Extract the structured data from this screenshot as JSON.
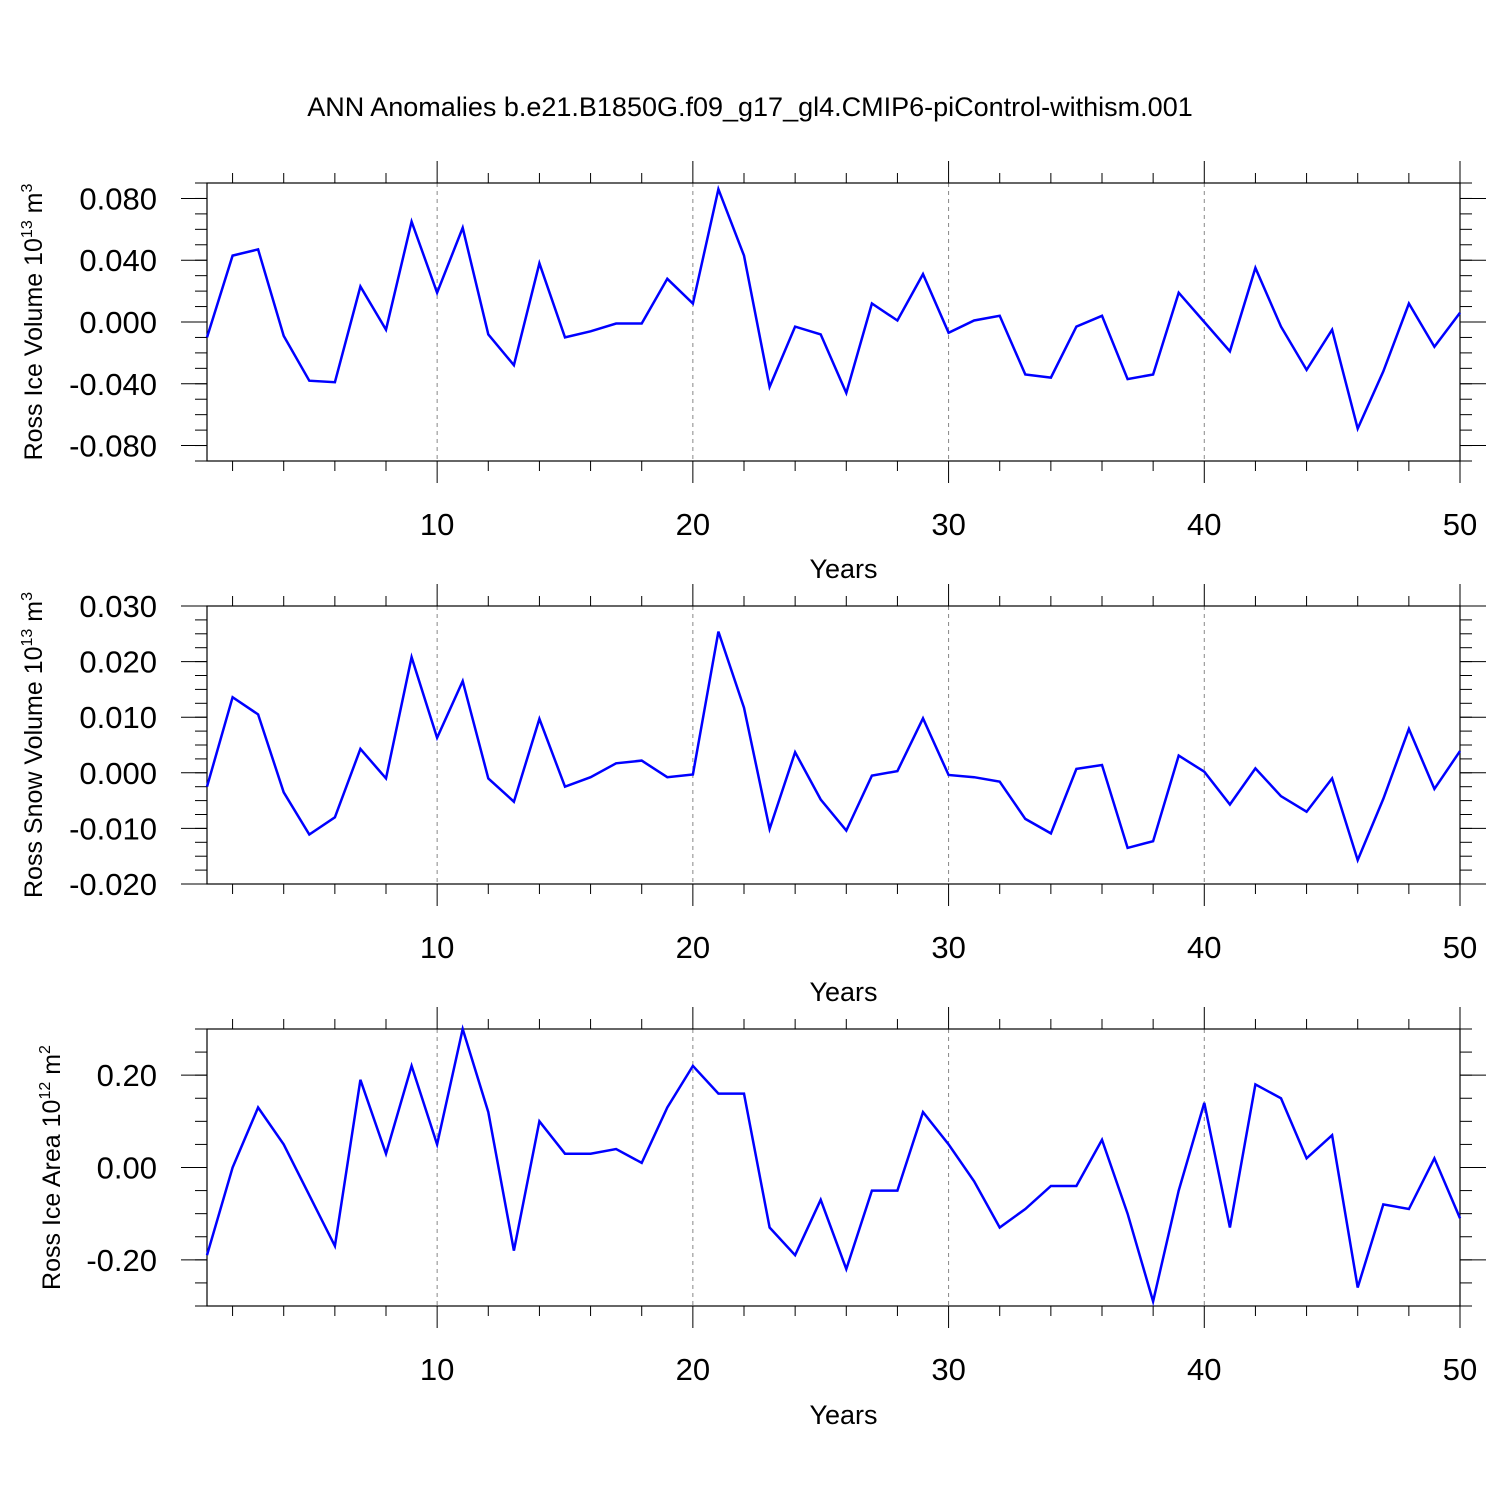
{
  "title": "ANN Anomalies b.e21.B1850G.f09_g17_gl4.CMIP6-piControl-withism.001",
  "colors": {
    "line": "#0000ff",
    "axis": "#000000",
    "grid": "#888888"
  },
  "chart_data": [
    {
      "type": "line",
      "xlabel": "Years",
      "ylabel": "Ross Ice Volume 10",
      "ylabel_exp": "13",
      "ylabel_unit": " m",
      "ylabel_unit_exp": "3",
      "xlim": [
        1,
        50
      ],
      "ylim": [
        -0.09,
        0.09
      ],
      "xticks": [
        "10",
        "20",
        "30",
        "40",
        "50"
      ],
      "yticks": [
        "-0.080",
        "-0.040",
        "0.000",
        "0.040",
        "0.080"
      ],
      "grid": "dashed vertical at 10, 20, 30, 40",
      "series": [
        {
          "x": [
            1,
            2,
            3,
            4,
            5,
            6,
            7,
            8,
            9,
            10,
            11,
            12,
            13,
            14,
            15,
            16,
            17,
            18,
            19,
            20,
            21,
            22,
            23,
            24,
            25,
            26,
            27,
            28,
            29,
            30,
            31,
            32,
            33,
            34,
            35,
            36,
            37,
            38,
            39,
            40,
            41,
            42,
            43,
            44,
            45,
            46,
            47,
            48,
            49,
            50
          ],
          "values": [
            -0.01,
            0.043,
            0.047,
            -0.009,
            -0.038,
            -0.039,
            0.023,
            -0.005,
            0.065,
            0.019,
            0.061,
            -0.008,
            -0.028,
            0.038,
            -0.01,
            -0.006,
            -0.001,
            -0.001,
            0.028,
            0.012,
            0.086,
            0.043,
            -0.042,
            -0.003,
            -0.008,
            -0.046,
            0.012,
            0.001,
            0.031,
            -0.007,
            0.001,
            0.004,
            -0.034,
            -0.036,
            -0.003,
            0.004,
            -0.037,
            -0.034,
            0.019,
            0.0,
            -0.019,
            0.035,
            -0.003,
            -0.031,
            -0.005,
            -0.069,
            -0.032,
            0.012,
            -0.016,
            0.006
          ]
        }
      ]
    },
    {
      "type": "line",
      "xlabel": "Years",
      "ylabel": "Ross Snow Volume 10",
      "ylabel_exp": "13",
      "ylabel_unit": " m",
      "ylabel_unit_exp": "3",
      "xlim": [
        1,
        50
      ],
      "ylim": [
        -0.02,
        0.03
      ],
      "xticks": [
        "10",
        "20",
        "30",
        "40",
        "50"
      ],
      "yticks": [
        "-0.020",
        "-0.010",
        "0.000",
        "0.010",
        "0.020",
        "0.030"
      ],
      "grid": "dashed vertical at 10, 20, 30, 40",
      "series": [
        {
          "x": [
            1,
            2,
            3,
            4,
            5,
            6,
            7,
            8,
            9,
            10,
            11,
            12,
            13,
            14,
            15,
            16,
            17,
            18,
            19,
            20,
            21,
            22,
            23,
            24,
            25,
            26,
            27,
            28,
            29,
            30,
            31,
            32,
            33,
            34,
            35,
            36,
            37,
            38,
            39,
            40,
            41,
            42,
            43,
            44,
            45,
            46,
            47,
            48,
            49,
            50
          ],
          "values": [
            -0.0025,
            0.0136,
            0.0105,
            -0.0035,
            -0.0111,
            -0.008,
            0.0043,
            -0.001,
            0.0208,
            0.0063,
            0.0165,
            -0.001,
            -0.0052,
            0.0097,
            -0.0025,
            -0.0008,
            0.0017,
            0.0022,
            -0.0008,
            -0.0003,
            0.0254,
            0.0117,
            -0.0101,
            0.0037,
            -0.0048,
            -0.0104,
            -0.0005,
            0.0003,
            0.0098,
            -0.0004,
            -0.0008,
            -0.0016,
            -0.0083,
            -0.0109,
            0.0007,
            0.0014,
            -0.0135,
            -0.0123,
            0.0031,
            0.0002,
            -0.0057,
            0.0008,
            -0.0042,
            -0.007,
            -0.001,
            -0.0157,
            -0.0047,
            0.0079,
            -0.0029,
            0.0039
          ]
        }
      ]
    },
    {
      "type": "line",
      "xlabel": "Years",
      "ylabel": "Ross Ice Area 10",
      "ylabel_exp": "12",
      "ylabel_unit": " m",
      "ylabel_unit_exp": "2",
      "xlim": [
        1,
        50
      ],
      "ylim": [
        -0.3,
        0.3
      ],
      "xticks": [
        "10",
        "20",
        "30",
        "40",
        "50"
      ],
      "yticks": [
        "-0.20",
        "0.00",
        "0.20"
      ],
      "grid": "dashed vertical at 10, 20, 30, 40",
      "series": [
        {
          "x": [
            1,
            2,
            3,
            4,
            5,
            6,
            7,
            8,
            9,
            10,
            11,
            12,
            13,
            14,
            15,
            16,
            17,
            18,
            19,
            20,
            21,
            22,
            23,
            24,
            25,
            26,
            27,
            28,
            29,
            30,
            31,
            32,
            33,
            34,
            35,
            36,
            37,
            38,
            39,
            40,
            41,
            42,
            43,
            44,
            45,
            46,
            47,
            48,
            49,
            50
          ],
          "values": [
            -0.19,
            0.0,
            0.13,
            0.05,
            -0.06,
            -0.17,
            0.19,
            0.03,
            0.22,
            0.05,
            0.3,
            0.12,
            -0.18,
            0.1,
            0.03,
            0.03,
            0.04,
            0.01,
            0.13,
            0.22,
            0.16,
            0.16,
            -0.13,
            -0.19,
            -0.07,
            -0.22,
            -0.05,
            -0.05,
            0.12,
            0.05,
            -0.03,
            -0.13,
            -0.09,
            -0.04,
            -0.04,
            0.06,
            -0.1,
            -0.29,
            -0.05,
            0.14,
            -0.13,
            0.18,
            0.15,
            0.02,
            0.07,
            -0.26,
            -0.08,
            -0.09,
            0.02,
            -0.11
          ]
        }
      ]
    }
  ]
}
